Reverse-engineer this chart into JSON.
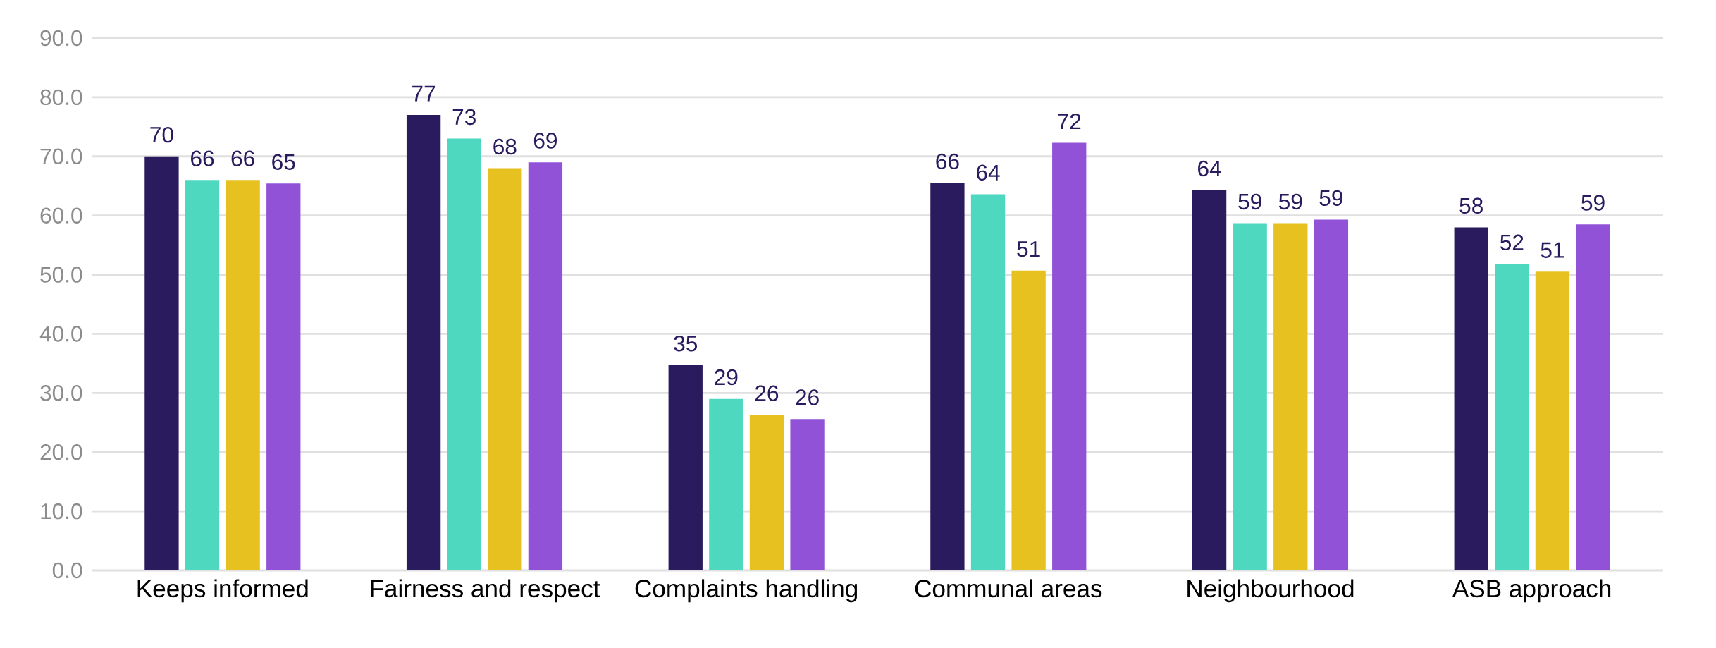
{
  "chart_data": {
    "type": "bar",
    "categories": [
      "Keeps informed",
      "Fairness and respect",
      "Complaints handling",
      "Communal areas",
      "Neighbourhood",
      "ASB approach"
    ],
    "series": [
      {
        "color": "#2a1a5e",
        "values": [
          70,
          77,
          34.7,
          65.5,
          64.3,
          58.0
        ],
        "value_labels": [
          "70",
          "77",
          "35",
          "66",
          "64",
          "58"
        ]
      },
      {
        "color": "#4fd8c0",
        "values": [
          66,
          73,
          29.0,
          63.6,
          58.7,
          51.8
        ],
        "value_labels": [
          "66",
          "73",
          "29",
          "64",
          "59",
          "52"
        ]
      },
      {
        "color": "#e6c11f",
        "values": [
          66,
          68,
          26.3,
          50.7,
          58.7,
          50.5
        ],
        "value_labels": [
          "66",
          "68",
          "26",
          "51",
          "59",
          "51"
        ]
      },
      {
        "color": "#9152d8",
        "values": [
          65.4,
          69,
          25.6,
          72.3,
          59.3,
          58.5
        ],
        "value_labels": [
          "65",
          "69",
          "26",
          "72",
          "59",
          "59"
        ]
      }
    ],
    "ylim": [
      0,
      90
    ],
    "yticks": [
      {
        "value": 0,
        "label": "0.0"
      },
      {
        "value": 10,
        "label": "10.0"
      },
      {
        "value": 20,
        "label": "20.0"
      },
      {
        "value": 30,
        "label": "30.0"
      },
      {
        "value": 40,
        "label": "40.0"
      },
      {
        "value": 50,
        "label": "50.0"
      },
      {
        "value": 60,
        "label": "60.0"
      },
      {
        "value": 70,
        "label": "70.0"
      },
      {
        "value": 80,
        "label": "80.0"
      },
      {
        "value": 90,
        "label": "90.0"
      }
    ],
    "grid": "y"
  }
}
